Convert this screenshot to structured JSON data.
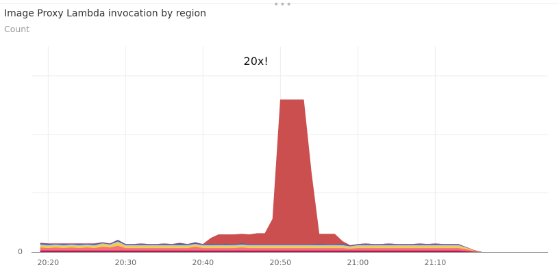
{
  "panel": {
    "title": "Image Proxy Lambda invocation by region",
    "subtitle": "Count",
    "drag_handle": "•••"
  },
  "chart_data": {
    "type": "area",
    "stacked": true,
    "title": "Image Proxy Lambda invocation by region",
    "ylabel": "Count",
    "y_tick_labels": [
      "0"
    ],
    "x_tick_labels": [
      "20:20",
      "20:30",
      "20:40",
      "20:50",
      "21:00",
      "21:10"
    ],
    "x_ticks_minutes": [
      20,
      30,
      40,
      50,
      60,
      70
    ],
    "xlim_minutes": [
      19,
      82
    ],
    "ylim": [
      0,
      330
    ],
    "grid": true,
    "annotation": {
      "text": "20x!",
      "x_minutes": 48.8
    },
    "x_minutes": [
      19,
      20,
      21,
      22,
      23,
      24,
      25,
      26,
      27,
      28,
      29,
      30,
      31,
      32,
      33,
      34,
      35,
      36,
      37,
      38,
      39,
      40,
      41,
      42,
      43,
      44,
      45,
      46,
      47,
      48,
      49,
      50,
      51,
      52,
      53,
      54,
      55,
      56,
      57,
      58,
      59,
      60,
      61,
      62,
      63,
      64,
      65,
      66,
      67,
      68,
      69,
      70,
      71,
      72,
      73,
      74,
      75,
      76
    ],
    "series": [
      {
        "color": "#b5175d",
        "values": [
          3,
          3,
          3,
          3,
          3,
          3,
          3,
          3,
          3,
          3,
          3,
          3,
          3,
          3,
          3,
          3,
          3,
          3,
          3,
          3,
          3,
          3,
          3,
          3,
          3,
          3,
          3,
          3,
          3,
          3,
          3,
          3,
          3,
          3,
          3,
          3,
          3,
          3,
          3,
          3,
          3,
          3,
          3,
          3,
          3,
          3,
          3,
          3,
          3,
          3,
          3,
          3,
          3,
          3,
          3,
          2,
          1,
          0
        ]
      },
      {
        "color": "#f3737d",
        "values": [
          5,
          4,
          5,
          4,
          5,
          4,
          5,
          4,
          6,
          5,
          8,
          4,
          4,
          4,
          4,
          4,
          4,
          4,
          4,
          4,
          6,
          4,
          4,
          4,
          4,
          4,
          5,
          4,
          4,
          4,
          4,
          4,
          4,
          4,
          4,
          4,
          4,
          4,
          4,
          4,
          3,
          4,
          4,
          4,
          4,
          4,
          4,
          4,
          4,
          4,
          4,
          4,
          4,
          4,
          4,
          3,
          1,
          0
        ]
      },
      {
        "color": "#f2d041",
        "values": [
          3,
          3,
          3,
          3,
          3,
          3,
          3,
          3,
          4,
          3,
          5,
          3,
          3,
          3,
          3,
          3,
          3,
          3,
          3,
          3,
          3,
          3,
          3,
          3,
          3,
          3,
          3,
          3,
          3,
          3,
          3,
          3,
          3,
          3,
          3,
          3,
          3,
          3,
          3,
          3,
          2,
          3,
          3,
          3,
          3,
          3,
          3,
          3,
          3,
          3,
          3,
          3,
          3,
          3,
          3,
          2,
          1,
          0
        ]
      },
      {
        "color": "#c3c2d0",
        "values": [
          2,
          2,
          2,
          2,
          2,
          2,
          2,
          2,
          2,
          2,
          2,
          2,
          2,
          2,
          2,
          2,
          2,
          2,
          2,
          2,
          2,
          2,
          2,
          2,
          2,
          2,
          2,
          2,
          2,
          2,
          2,
          2,
          2,
          2,
          2,
          2,
          2,
          2,
          2,
          2,
          2,
          2,
          2,
          2,
          2,
          2,
          2,
          2,
          2,
          2,
          2,
          2,
          2,
          2,
          2,
          1,
          0,
          0
        ]
      },
      {
        "color": "#3f63a6",
        "values": [
          2,
          2,
          1,
          2,
          1,
          2,
          1,
          2,
          1,
          1,
          2,
          1,
          1,
          2,
          1,
          1,
          2,
          1,
          3,
          1,
          2,
          1,
          2,
          1,
          2,
          1,
          2,
          1,
          1,
          1,
          1,
          1,
          1,
          1,
          1,
          1,
          2,
          1,
          1,
          2,
          1,
          1,
          2,
          1,
          1,
          2,
          1,
          1,
          1,
          2,
          1,
          2,
          1,
          1,
          1,
          0,
          0,
          0
        ]
      },
      {
        "color": "#cc4f4f",
        "values": [
          0,
          0,
          0,
          0,
          0,
          0,
          0,
          0,
          0,
          0,
          0,
          0,
          0,
          0,
          0,
          0,
          0,
          0,
          0,
          0,
          0,
          0,
          9,
          16,
          15,
          16,
          15,
          16,
          18,
          18,
          42,
          240,
          240,
          240,
          240,
          118,
          16,
          17,
          17,
          4,
          0,
          0,
          0,
          0,
          0,
          0,
          0,
          0,
          0,
          0,
          0,
          0,
          0,
          0,
          0,
          0,
          0,
          0
        ]
      }
    ]
  }
}
